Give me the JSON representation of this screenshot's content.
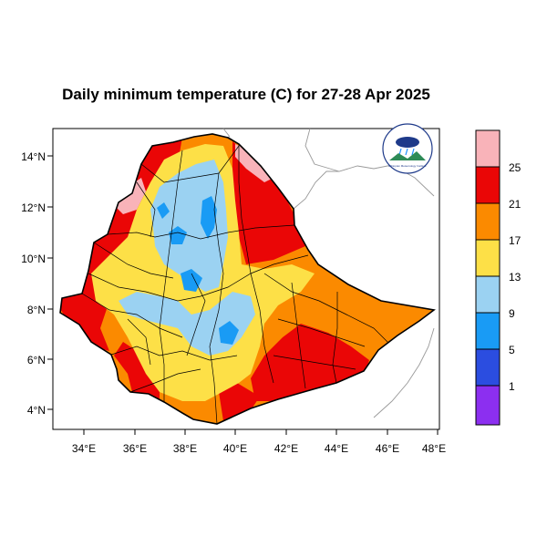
{
  "title": "Daily minimum temperature (C) for 27-28 Apr 2025",
  "map": {
    "lon_range": [
      33,
      48
    ],
    "lat_range": [
      3.2,
      15
    ],
    "lon_ticks": [
      "34°E",
      "36°E",
      "38°E",
      "40°E",
      "42°E",
      "44°E",
      "46°E",
      "48°E"
    ],
    "lat_ticks": [
      "4°N",
      "6°N",
      "8°N",
      "10°N",
      "12°N",
      "14°N"
    ]
  },
  "colorbar": {
    "levels": [
      "1",
      "5",
      "9",
      "13",
      "17",
      "21",
      "25"
    ],
    "colors": {
      "below_1": "#8c2ff0",
      "1_5": "#2b4de0",
      "5_9": "#199bf5",
      "9_13": "#9bd2f2",
      "13_17": "#fde047",
      "17_21": "#fb8a00",
      "21_25": "#ea0606",
      "above_25": "#f9b3b9"
    }
  },
  "logo": {
    "text": "Ethiopian Meteorology Institute"
  }
}
